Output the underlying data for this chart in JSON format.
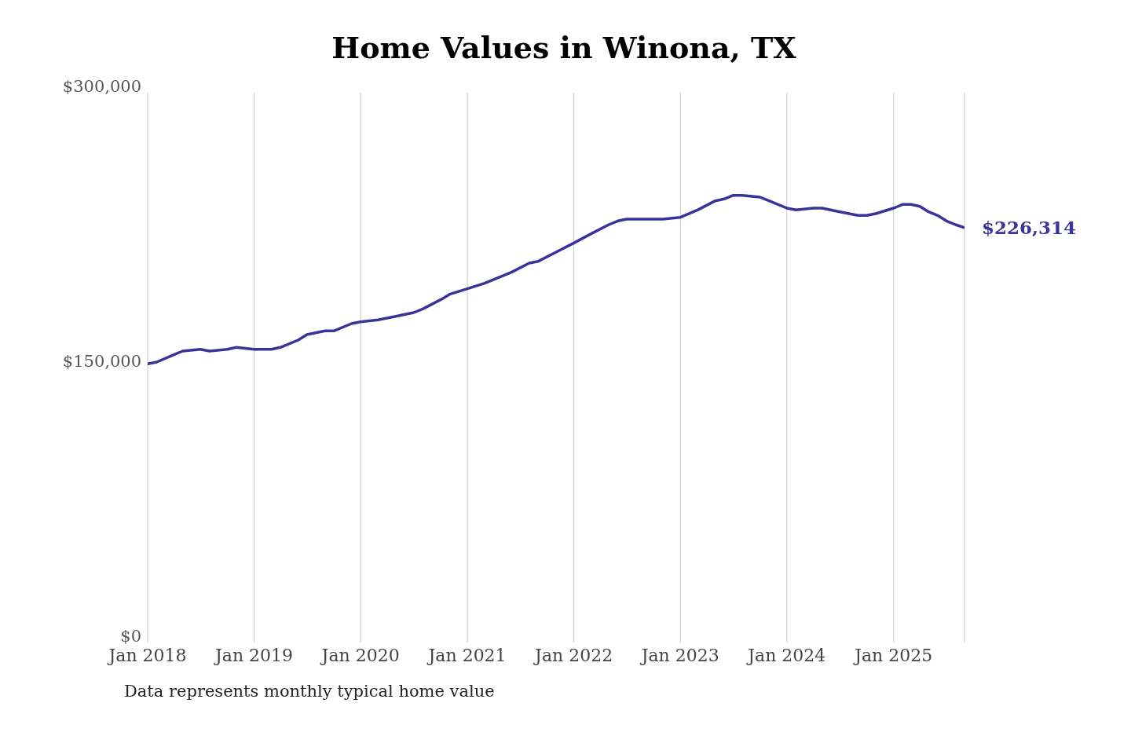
{
  "chart_data": {
    "type": "line",
    "title": "Home Values in Winona, TX",
    "x": [
      "2018-01",
      "2018-02",
      "2018-04",
      "2018-05",
      "2018-07",
      "2018-08",
      "2018-10",
      "2018-11",
      "2019-01",
      "2019-02",
      "2019-03",
      "2019-04",
      "2019-06",
      "2019-07",
      "2019-09",
      "2019-10",
      "2019-12",
      "2020-01",
      "2020-03",
      "2020-05",
      "2020-07",
      "2020-08",
      "2020-10",
      "2020-11",
      "2021-01",
      "2021-03",
      "2021-05",
      "2021-06",
      "2021-08",
      "2021-09",
      "2021-11",
      "2022-01",
      "2022-03",
      "2022-05",
      "2022-06",
      "2022-07",
      "2022-08",
      "2022-10",
      "2022-11",
      "2023-01",
      "2023-03",
      "2023-05",
      "2023-06",
      "2023-07",
      "2023-08",
      "2023-10",
      "2023-11",
      "2024-01",
      "2024-02",
      "2024-04",
      "2024-05",
      "2024-07",
      "2024-09",
      "2024-10",
      "2024-11",
      "2025-01",
      "2025-02",
      "2025-03",
      "2025-04",
      "2025-05",
      "2025-06",
      "2025-07",
      "2025-08",
      "2025-09"
    ],
    "series": [
      {
        "color": "#3a3399",
        "values": [
          152000,
          153000,
          157000,
          159000,
          160000,
          159000,
          160000,
          161000,
          160000,
          160000,
          160000,
          161000,
          165000,
          168000,
          170000,
          170000,
          174000,
          175000,
          176000,
          178000,
          180000,
          182000,
          187000,
          190000,
          193000,
          196000,
          200000,
          202000,
          207000,
          208000,
          213000,
          218000,
          223000,
          228000,
          230000,
          231000,
          231000,
          231000,
          231000,
          232000,
          236000,
          241000,
          242000,
          244000,
          244000,
          243000,
          241000,
          237000,
          236000,
          237000,
          237000,
          235000,
          233000,
          233000,
          234000,
          237000,
          239000,
          239000,
          238000,
          235000,
          233000,
          230000,
          228000,
          226314
        ]
      }
    ],
    "xlim": [
      "2018-01",
      "2025-09"
    ],
    "xticks": [
      {
        "value": "2018-01",
        "label": "Jan 2018"
      },
      {
        "value": "2019-01",
        "label": "Jan 2019"
      },
      {
        "value": "2020-01",
        "label": "Jan 2020"
      },
      {
        "value": "2021-01",
        "label": "Jan 2021"
      },
      {
        "value": "2022-01",
        "label": "Jan 2022"
      },
      {
        "value": "2023-01",
        "label": "Jan 2023"
      },
      {
        "value": "2024-01",
        "label": "Jan 2024"
      },
      {
        "value": "2025-01",
        "label": "Jan 2025"
      }
    ],
    "ylim": [
      0,
      300000
    ],
    "yticks": [
      {
        "value": 0,
        "label": "$0"
      },
      {
        "value": 150000,
        "label": "$150,000"
      },
      {
        "value": 300000,
        "label": "$300,000"
      }
    ],
    "grid": "x",
    "legend": false,
    "marker": "none",
    "line_style": "solid",
    "annotations": [
      {
        "text": "$226,314",
        "x": "2025-09",
        "y": 226314
      },
      "Data represents monthly typical home value"
    ]
  }
}
